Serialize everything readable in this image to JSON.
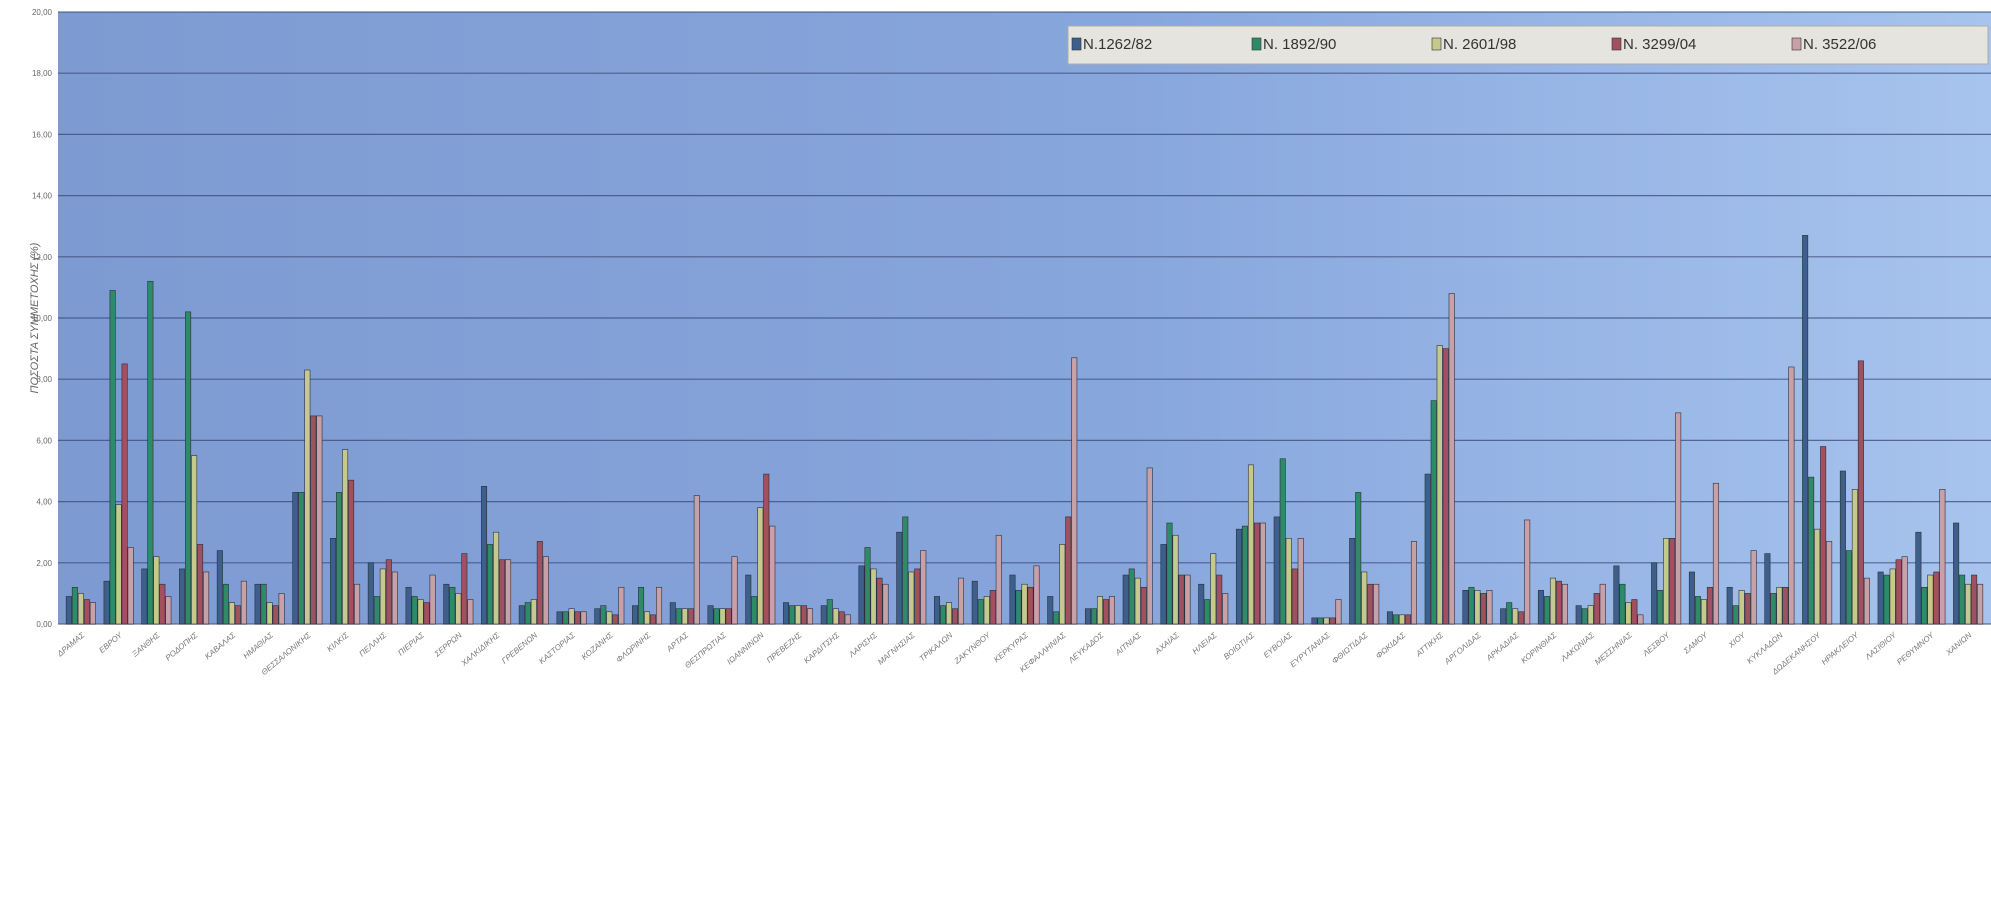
{
  "chart_data": {
    "type": "bar",
    "title": "",
    "ylabel": "ΠΟΣΟΣΤΑ ΣΥΜΜΕΤΟΧΗΣ (%)",
    "xlabel": "",
    "ylim": [
      0,
      20
    ],
    "yticks": [
      "0,00",
      "2,00",
      "4,00",
      "6,00",
      "8,00",
      "10,00",
      "12,00",
      "14,00",
      "16,00",
      "18,00",
      "20,00"
    ],
    "grid": true,
    "legend_position": "top-right",
    "plot_background": "#7f9fd8",
    "categories": [
      "ΔΡΑΜΑΣ",
      "ΕΒΡΟΥ",
      "ΞΑΝΘΗΣ",
      "ΡΟΔΟΠΗΣ",
      "ΚΑΒΑΛΑΣ",
      "ΗΜΑΘΙΑΣ",
      "ΘΕΣΣΑΛΟΝΙΚΗΣ",
      "ΚΙΛΚΙΣ",
      "ΠΕΛΛΗΣ",
      "ΠΙΕΡΙΑΣ",
      "ΣΕΡΡΩΝ",
      "ΧΑΛΚΙΔΙΚΗΣ",
      "ΓΡΕΒΕΝΩΝ",
      "ΚΑΣΤΟΡΙΑΣ",
      "ΚΟΖΑΝΗΣ",
      "ΦΛΩΡΙΝΗΣ",
      "ΑΡΤΑΣ",
      "ΘΕΣΠΡΩΤΙΑΣ",
      "ΙΩΑΝΝΙΝΩΝ",
      "ΠΡΕΒΕΖΗΣ",
      "ΚΑΡΔΙΤΣΗΣ",
      "ΛΑΡΙΣΗΣ",
      "ΜΑΓΝΗΣΙΑΣ",
      "ΤΡΙΚΑΛΩΝ",
      "ΖΑΚΥΝΘΟΥ",
      "ΚΕΡΚΥΡΑΣ",
      "ΚΕΦΑΛΛΗΝΙΑΣ",
      "ΛΕΥΚΑΔΟΣ",
      "ΑΙΤΝΙΑΣ",
      "ΑΧΑΙΑΣ",
      "ΗΛΕΙΑΣ",
      "ΒΟΙΩΤΙΑΣ",
      "ΕΥΒΟΙΑΣ",
      "ΕΥΡΥΤΑΝΙΑΣ",
      "ΦΘΙΩΤΙΔΑΣ",
      "ΦΩΚΙΔΑΣ",
      "ΑΤΤΙΚΗΣ",
      "ΑΡΓΟΛΙΔΑΣ",
      "ΑΡΚΑΔΙΑΣ",
      "ΚΟΡΙΝΘΙΑΣ",
      "ΛΑΚΩΝΙΑΣ",
      "ΜΕΣΣΗΝΙΑΣ",
      "ΛΕΣΒΟΥ",
      "ΣΑΜΟΥ",
      "ΧΙΟΥ",
      "ΚΥΚΛΑΔΩΝ",
      "ΔΩΔΕΚΑΝΗΣΟΥ",
      "ΗΡΑΚΛΕΙΟΥ",
      "ΛΑΣΙΘΙΟΥ",
      "ΡΕΘΥΜΝΟΥ",
      "ΧΑΝΙΩΝ"
    ],
    "series": [
      {
        "name": "N.1262/82",
        "color": "#3d5f8c",
        "values": [
          0.9,
          1.4,
          1.8,
          1.8,
          2.4,
          1.3,
          4.3,
          2.8,
          2.0,
          1.2,
          1.3,
          4.5,
          0.6,
          0.4,
          0.5,
          0.6,
          0.7,
          0.6,
          1.6,
          0.7,
          0.6,
          1.9,
          3.0,
          0.9,
          1.4,
          1.6,
          0.9,
          0.5,
          1.6,
          2.6,
          1.3,
          3.1,
          3.5,
          0.2,
          2.8,
          0.4,
          4.9,
          1.1,
          0.5,
          1.1,
          0.6,
          1.9,
          2.0,
          1.7,
          1.2,
          2.3,
          12.7,
          5.0,
          1.7,
          3.0,
          3.3
        ]
      },
      {
        "name": "N. 1892/90",
        "color": "#2e8a68",
        "values": [
          1.2,
          10.9,
          11.2,
          10.2,
          1.3,
          1.3,
          4.3,
          4.3,
          0.9,
          0.9,
          1.2,
          2.6,
          0.7,
          0.4,
          0.6,
          1.2,
          0.5,
          0.5,
          0.9,
          0.6,
          0.8,
          2.5,
          3.5,
          0.6,
          0.8,
          1.1,
          0.4,
          0.5,
          1.8,
          3.3,
          0.8,
          3.2,
          5.4,
          0.2,
          4.3,
          0.3,
          7.3,
          1.2,
          0.7,
          0.9,
          0.5,
          1.3,
          1.1,
          0.9,
          0.6,
          1.0,
          4.8,
          2.4,
          1.6,
          1.2,
          1.6
        ]
      },
      {
        "name": "N. 2601/98",
        "color": "#c6c98c",
        "values": [
          1.0,
          3.9,
          2.2,
          5.5,
          0.7,
          0.7,
          8.3,
          5.7,
          1.8,
          0.8,
          1.0,
          3.0,
          0.8,
          0.5,
          0.4,
          0.4,
          0.5,
          0.5,
          3.8,
          0.6,
          0.5,
          1.8,
          1.7,
          0.7,
          0.9,
          1.3,
          2.6,
          0.9,
          1.5,
          2.9,
          2.3,
          5.2,
          2.8,
          0.2,
          1.7,
          0.3,
          9.1,
          1.1,
          0.5,
          1.5,
          0.6,
          0.7,
          2.8,
          0.8,
          1.1,
          1.2,
          3.1,
          4.4,
          1.8,
          1.6,
          1.3
        ]
      },
      {
        "name": "N. 3299/04",
        "color": "#a0505e",
        "values": [
          0.8,
          8.5,
          1.3,
          2.6,
          0.6,
          0.6,
          6.8,
          4.7,
          2.1,
          0.7,
          2.3,
          2.1,
          2.7,
          0.4,
          0.3,
          0.3,
          0.5,
          0.5,
          4.9,
          0.6,
          0.4,
          1.5,
          1.8,
          0.5,
          1.1,
          1.2,
          3.5,
          0.8,
          1.2,
          1.6,
          1.6,
          3.3,
          1.8,
          0.2,
          1.3,
          0.3,
          9.0,
          1.0,
          0.4,
          1.4,
          1.0,
          0.8,
          2.8,
          1.2,
          1.0,
          1.2,
          5.8,
          8.6,
          2.1,
          1.7,
          1.6
        ]
      },
      {
        "name": "N. 3522/06",
        "color": "#c8a0a8",
        "values": [
          0.7,
          2.5,
          0.9,
          1.7,
          1.4,
          1.0,
          6.8,
          1.3,
          1.7,
          1.6,
          0.8,
          2.1,
          2.2,
          0.4,
          1.2,
          1.2,
          4.2,
          2.2,
          3.2,
          0.5,
          0.3,
          1.3,
          2.4,
          1.5,
          2.9,
          1.9,
          8.7,
          0.9,
          5.1,
          1.6,
          1.0,
          3.3,
          2.8,
          0.8,
          1.3,
          2.7,
          10.8,
          1.1,
          3.4,
          1.3,
          1.3,
          0.3,
          6.9,
          4.6,
          2.4,
          8.4,
          2.7,
          1.5,
          2.2,
          4.4,
          1.3
        ]
      }
    ]
  }
}
